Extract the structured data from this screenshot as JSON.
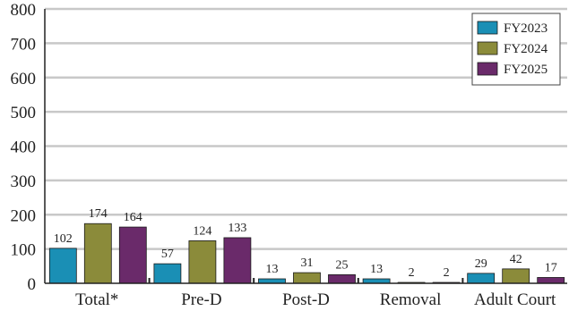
{
  "chart_data": {
    "type": "bar",
    "categories": [
      "Total*",
      "Pre-D",
      "Post-D",
      "Removal",
      "Adult Court"
    ],
    "series": [
      {
        "name": "FY2023",
        "color": "#1a8fb5",
        "values": [
          102,
          57,
          13,
          13,
          29
        ]
      },
      {
        "name": "FY2024",
        "color": "#8b8b3a",
        "values": [
          174,
          124,
          31,
          2,
          42
        ]
      },
      {
        "name": "FY2025",
        "color": "#6a2a6a",
        "values": [
          164,
          133,
          25,
          2,
          17
        ]
      }
    ],
    "y_ticks": [
      "0",
      "100",
      "200",
      "300",
      "400",
      "500",
      "600",
      "700",
      "800"
    ],
    "ylim": [
      0,
      800
    ],
    "grid": true,
    "legend_position": "top-right"
  }
}
